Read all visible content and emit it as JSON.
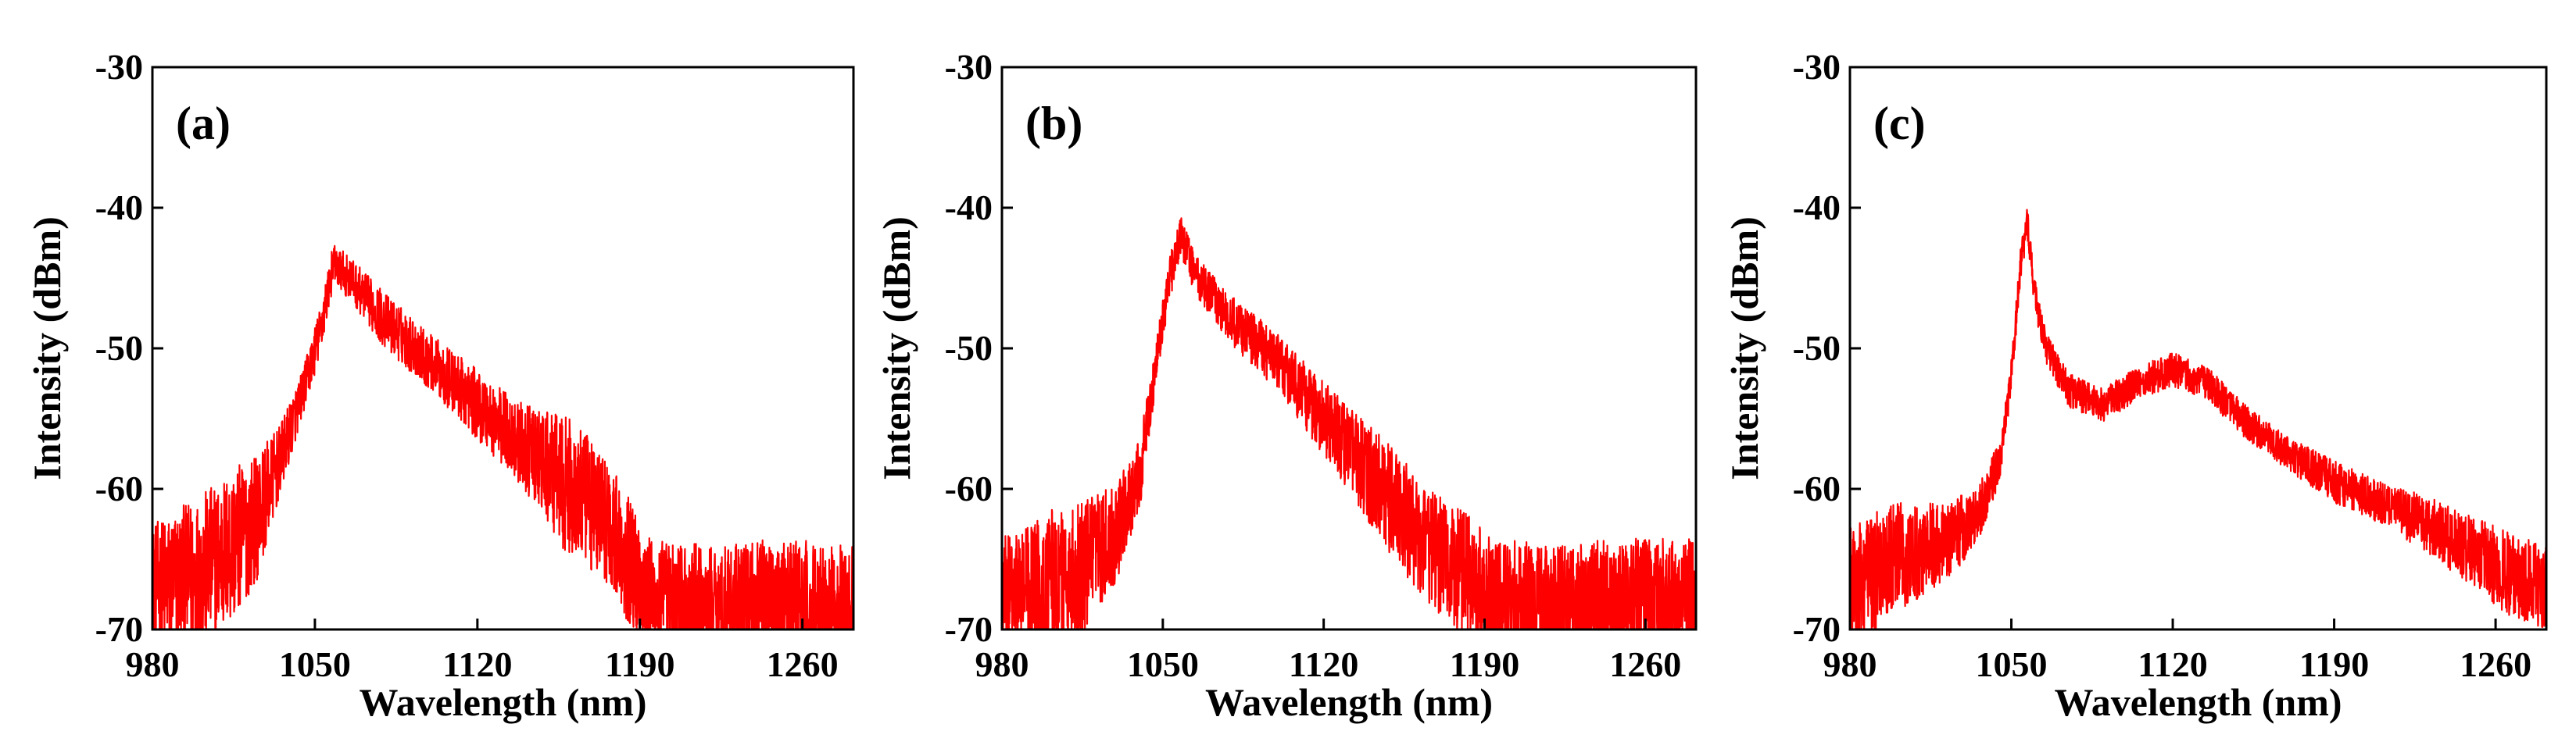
{
  "chart_data": [
    {
      "type": "line",
      "panel_label": "(a)",
      "title": "",
      "xlabel": "Wavelength (nm)",
      "ylabel": "Intensity (dBm)",
      "xlim": [
        980,
        1282
      ],
      "ylim": [
        -70,
        -30
      ],
      "xticks": [
        980,
        1050,
        1120,
        1190,
        1260
      ],
      "yticks": [
        -30,
        -40,
        -50,
        -60,
        -70
      ],
      "grid": false,
      "color": "#ff0000",
      "series": [
        {
          "name": "spectrum",
          "noise_db": [
            4.5,
            5.5,
            5.5,
            4.5,
            2.5,
            1.6,
            1.8,
            1.5,
            1.5,
            2.0,
            2.0,
            2.5,
            3.0,
            5.0,
            4.5,
            4.5
          ],
          "x": [
            980,
            1000,
            1015,
            1025,
            1035,
            1045,
            1052,
            1058,
            1065,
            1080,
            1100,
            1120,
            1140,
            1160,
            1175,
            1185,
            1195,
            1220,
            1250,
            1282
          ],
          "y": [
            -67,
            -66,
            -64,
            -62,
            -58,
            -53,
            -49,
            -44,
            -45,
            -48,
            -51,
            -54,
            -57,
            -60,
            -62,
            -65,
            -68,
            -68.5,
            -68,
            -68.5
          ]
        }
      ]
    },
    {
      "type": "line",
      "panel_label": "(b)",
      "title": "",
      "xlabel": "Wavelength (nm)",
      "ylabel": "Intensity (dBm)",
      "xlim": [
        980,
        1282
      ],
      "ylim": [
        -70,
        -30
      ],
      "xticks": [
        980,
        1050,
        1120,
        1190,
        1260
      ],
      "yticks": [
        -30,
        -40,
        -50,
        -60,
        -70
      ],
      "grid": false,
      "color": "#ff0000",
      "series": [
        {
          "name": "spectrum",
          "x": [
            980,
            1000,
            1015,
            1030,
            1040,
            1048,
            1053,
            1058,
            1065,
            1080,
            1100,
            1115,
            1130,
            1150,
            1165,
            1180,
            1195,
            1220,
            1250,
            1282
          ],
          "y": [
            -68,
            -67,
            -66,
            -63,
            -59,
            -50,
            -45,
            -42,
            -45,
            -48,
            -51,
            -54,
            -57,
            -61,
            -64,
            -66,
            -68,
            -68.5,
            -68,
            -68
          ],
          "noise_db": [
            4.5,
            5.5,
            5.0,
            3.5,
            2.5,
            1.5,
            1.5,
            1.5,
            1.5,
            1.8,
            2.0,
            2.5,
            3.0,
            4.0,
            4.0,
            4.5,
            4.5,
            4.5
          ]
        }
      ]
    },
    {
      "type": "line",
      "panel_label": "(c)",
      "title": "",
      "xlabel": "Wavelength (nm)",
      "ylabel": "Intensity (dBm)",
      "xlim": [
        980,
        1282
      ],
      "ylim": [
        -70,
        -30
      ],
      "xticks": [
        980,
        1050,
        1120,
        1190,
        1260
      ],
      "yticks": [
        -30,
        -40,
        -50,
        -60,
        -70
      ],
      "grid": false,
      "color": "#ff0000",
      "series": [
        {
          "name": "spectrum",
          "x": [
            980,
            1000,
            1020,
            1035,
            1045,
            1050,
            1054,
            1057,
            1060,
            1065,
            1075,
            1090,
            1105,
            1120,
            1135,
            1150,
            1170,
            1190,
            1210,
            1230,
            1250,
            1265,
            1282
          ],
          "y": [
            -67,
            -65,
            -64,
            -62,
            -58,
            -52,
            -44,
            -41,
            -46,
            -50,
            -53,
            -54,
            -52.5,
            -51.5,
            -52.5,
            -55,
            -57.5,
            -59.5,
            -61,
            -62.5,
            -64.5,
            -66,
            -67
          ],
          "noise_db": [
            4.5,
            4.0,
            3.0,
            2.0,
            1.5,
            1.2,
            1.2,
            1.2,
            1.2,
            1.2,
            1.2,
            1.2,
            1.2,
            1.2,
            1.2,
            1.2,
            1.2,
            1.5,
            1.5,
            2.0,
            2.5,
            3.0,
            3.0
          ]
        }
      ]
    }
  ]
}
